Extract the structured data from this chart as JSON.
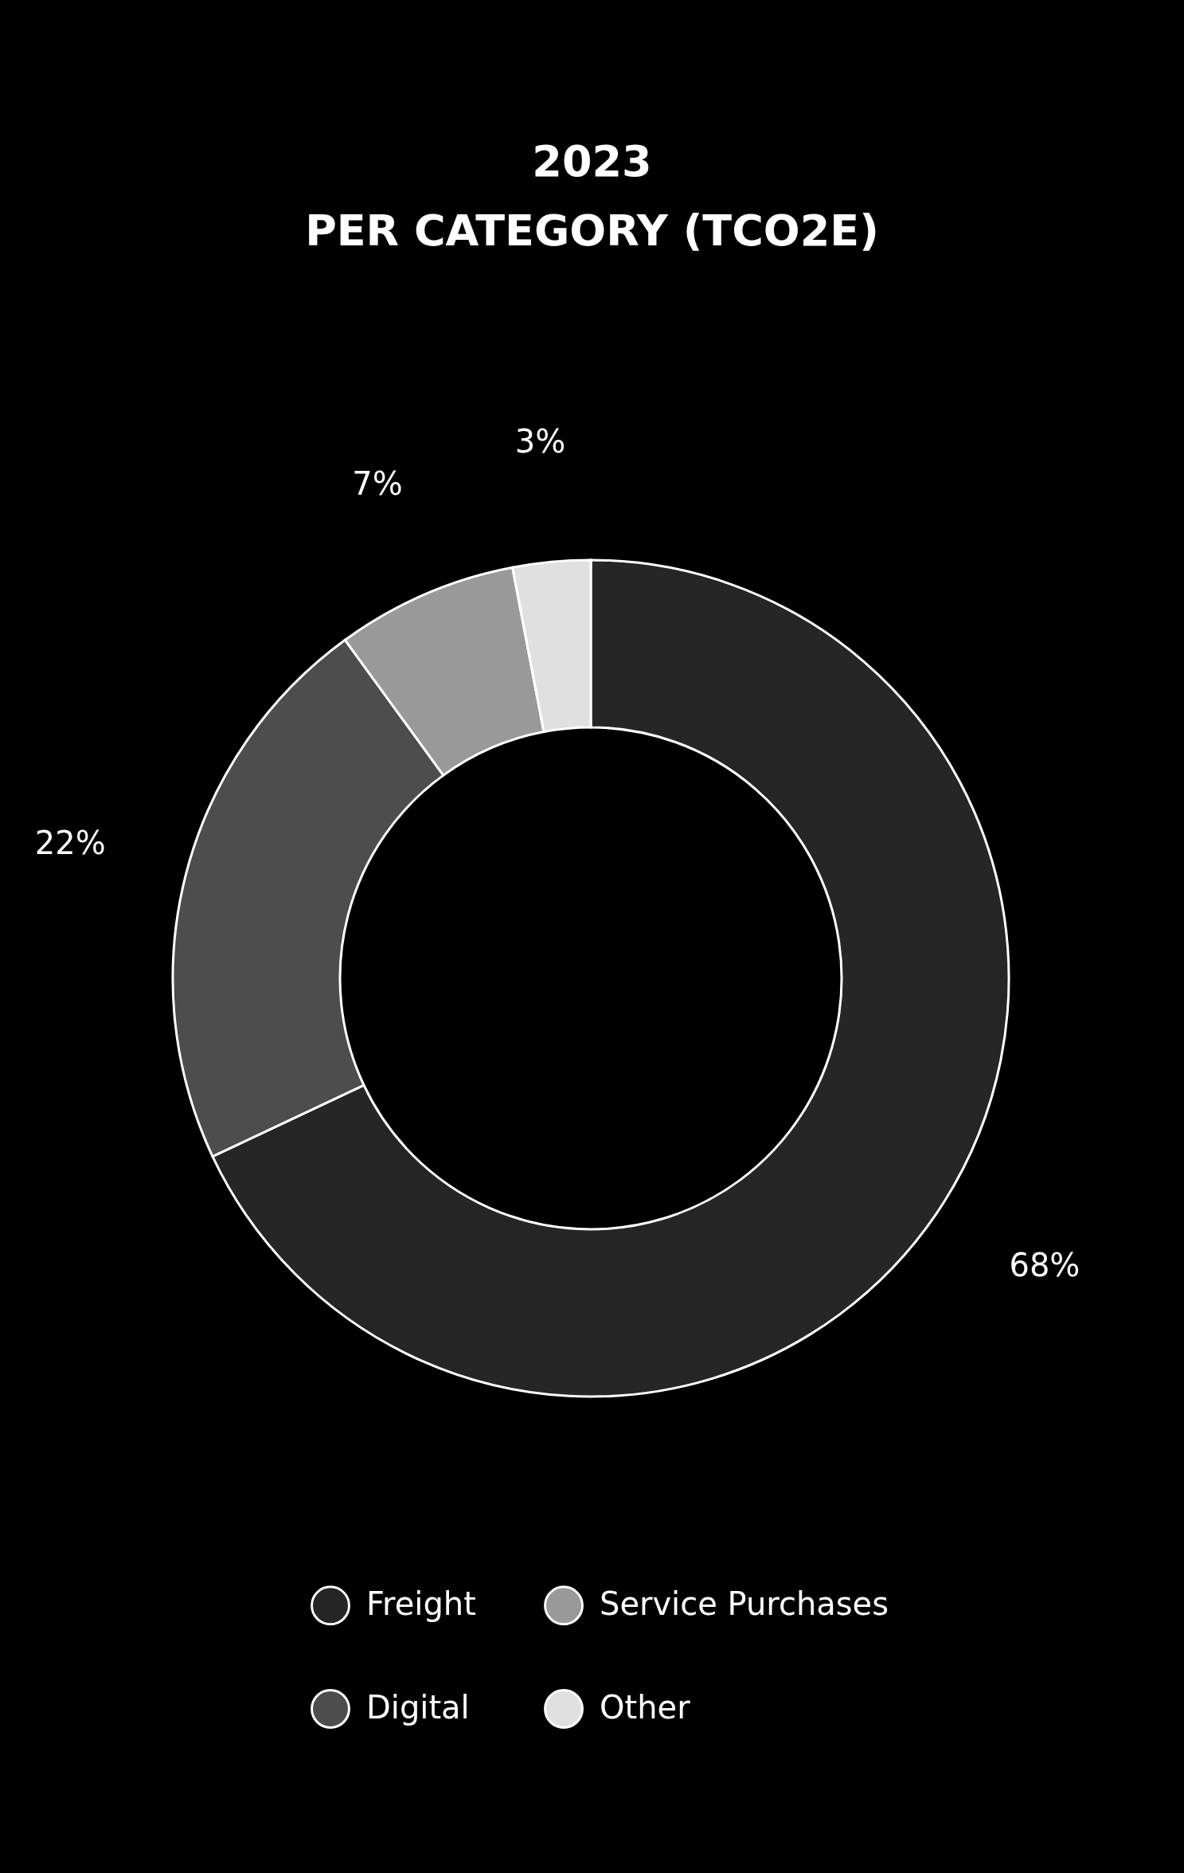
{
  "chart_data": {
    "type": "donut",
    "title": "2023",
    "subtitle": "PER CATEGORY (TCO2E)",
    "categories": [
      "Freight",
      "Digital",
      "Service Purchases",
      "Other"
    ],
    "values": [
      68,
      22,
      7,
      3
    ],
    "colors": [
      "#262626",
      "#4d4d4d",
      "#999999",
      "#e0e0e0"
    ],
    "value_labels": [
      "68%",
      "22%",
      "7%",
      "3%"
    ],
    "legend": "bottom"
  }
}
